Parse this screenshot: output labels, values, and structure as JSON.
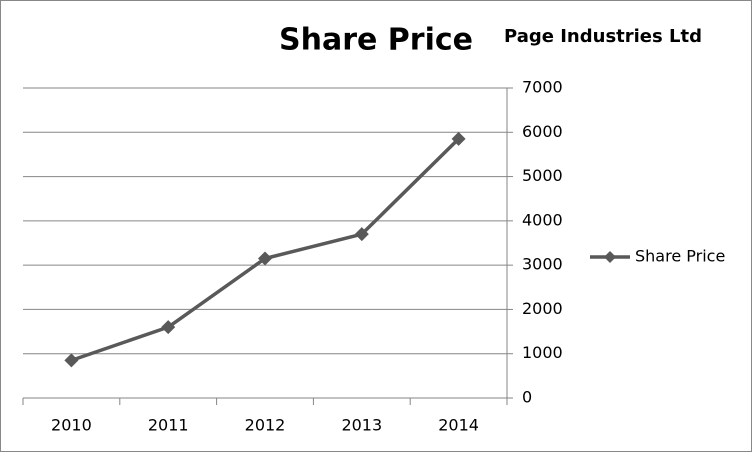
{
  "chart_data": {
    "type": "line",
    "title": "Share Price",
    "subtitle": "Page Industries Ltd",
    "categories": [
      "2010",
      "2011",
      "2012",
      "2013",
      "2014"
    ],
    "series": [
      {
        "name": "Share Price",
        "color": "#595959",
        "values": [
          850,
          1600,
          3150,
          3700,
          5850
        ]
      }
    ],
    "ylim": [
      0,
      7000
    ],
    "yticks": [
      0,
      1000,
      2000,
      3000,
      4000,
      5000,
      6000,
      7000
    ],
    "grid": true,
    "legend": "right"
  }
}
